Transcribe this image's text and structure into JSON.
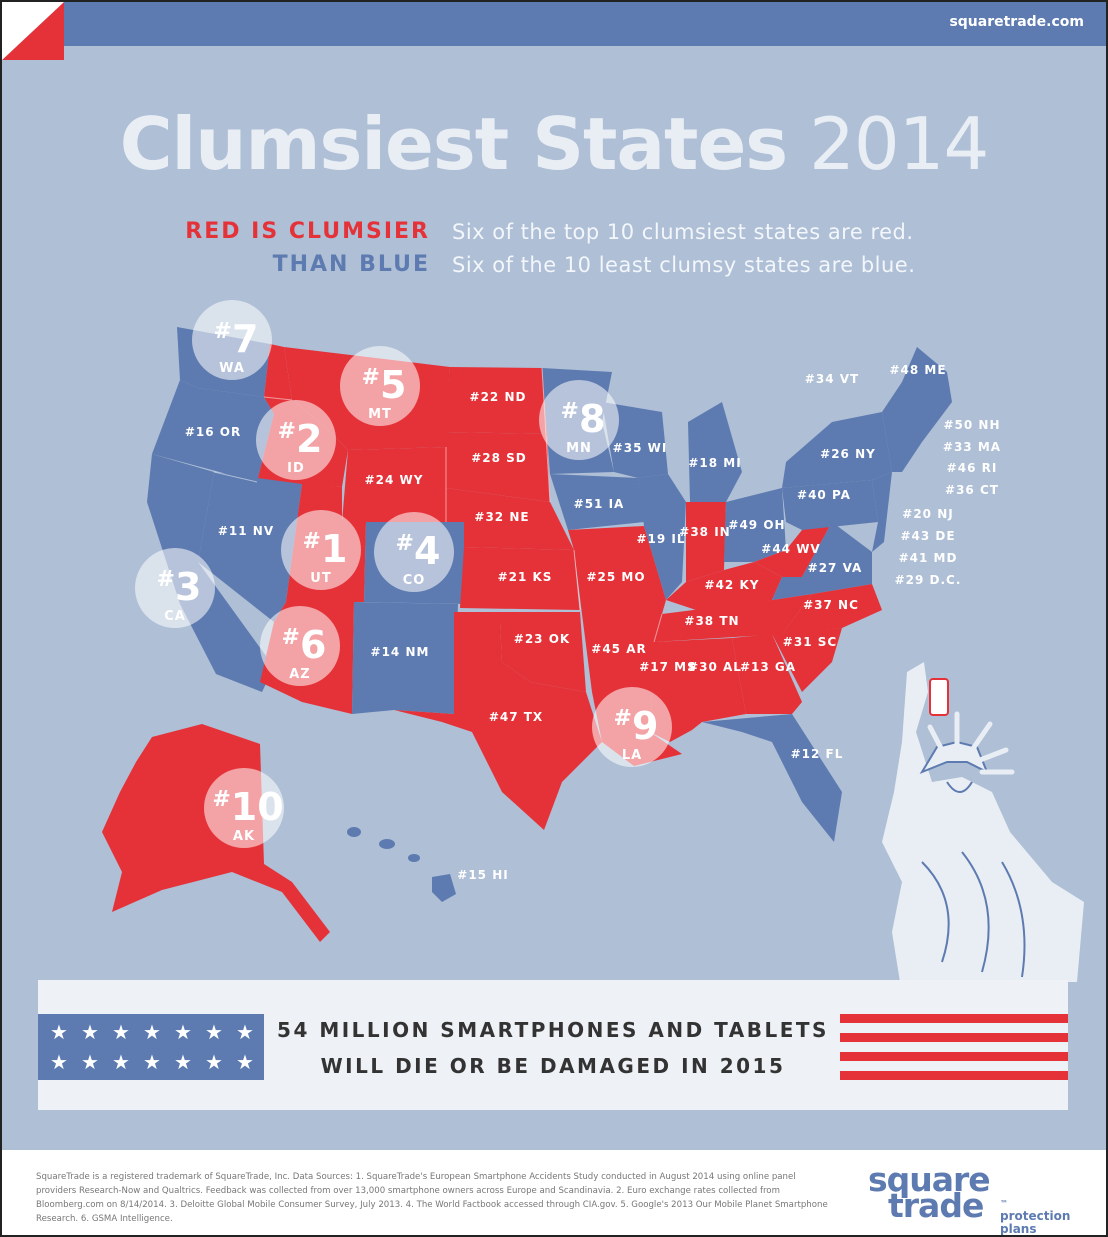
{
  "header": {
    "site": "squaretrade.com"
  },
  "title": {
    "main": "Clumsiest States",
    "year": "2014"
  },
  "subtitle": {
    "line1_left": "RED IS CLUMSIER",
    "line1_right": "Six of the top 10 clumsiest states are red.",
    "line2_left": "THAN BLUE",
    "line2_right": "Six of the 10 least clumsy states are blue."
  },
  "colors": {
    "red": "#e53238",
    "blue": "#5d7bb0",
    "background": "#aebfd6"
  },
  "top_ten": [
    {
      "rank": "#1",
      "state": "UT"
    },
    {
      "rank": "#2",
      "state": "ID"
    },
    {
      "rank": "#3",
      "state": "CA"
    },
    {
      "rank": "#4",
      "state": "CO"
    },
    {
      "rank": "#5",
      "state": "MT"
    },
    {
      "rank": "#6",
      "state": "AZ"
    },
    {
      "rank": "#7",
      "state": "WA"
    },
    {
      "rank": "#8",
      "state": "MN"
    },
    {
      "rank": "#9",
      "state": "LA"
    },
    {
      "rank": "#10",
      "state": "AK"
    }
  ],
  "state_labels": [
    "#16 OR",
    "#11 NV",
    "#22 ND",
    "#28 SD",
    "#24 WY",
    "#32 NE",
    "#14 NM",
    "#21 KS",
    "#23 OK",
    "#47 TX",
    "#25 MO",
    "#45 AR",
    "#51 IA",
    "#35 WI",
    "#19 IL",
    "#38 IN",
    "#18 MI",
    "#49 OH",
    "#42 KY",
    "#38 TN",
    "#17 MS",
    "#30 AL",
    "#13 GA",
    "#12 FL",
    "#31 SC",
    "#37 NC",
    "#27 VA",
    "#44 WV",
    "#40 PA",
    "#26 NY",
    "#15 HI"
  ],
  "northeast_labels": [
    "#48 ME",
    "#34 VT",
    "#50 NH",
    "#33 MA",
    "#46 RI",
    "#36 CT",
    "#20 NJ",
    "#43 DE",
    "#41 MD",
    "#29 D.C."
  ],
  "banner": {
    "line1": "54 MILLION SMARTPHONES AND TABLETS",
    "line2": "WILL DIE OR BE DAMAGED IN 2015"
  },
  "footer": {
    "fine_print": "SquareTrade is a registered trademark of SquareTrade, Inc. Data Sources: 1. SquareTrade's European Smartphone Accidents Study conducted in August 2014 using online panel providers Research-Now and Qualtrics. Feedback was collected from over 13,000 smartphone owners across Europe and Scandinavia. 2. Euro exchange rates collected from Bloomberg.com on 8/14/2014. 3. Deloitte Global Mobile Consumer Survey, July 2013. 4. The World Factbook accessed through CIA.gov. 5. Google's 2013 Our Mobile Planet Smartphone Research. 6. GSMA Intelligence.",
    "logo_square": "square",
    "logo_trade": "trade",
    "logo_tm": "™",
    "logo_tag1": "protection",
    "logo_tag2": "plans"
  }
}
